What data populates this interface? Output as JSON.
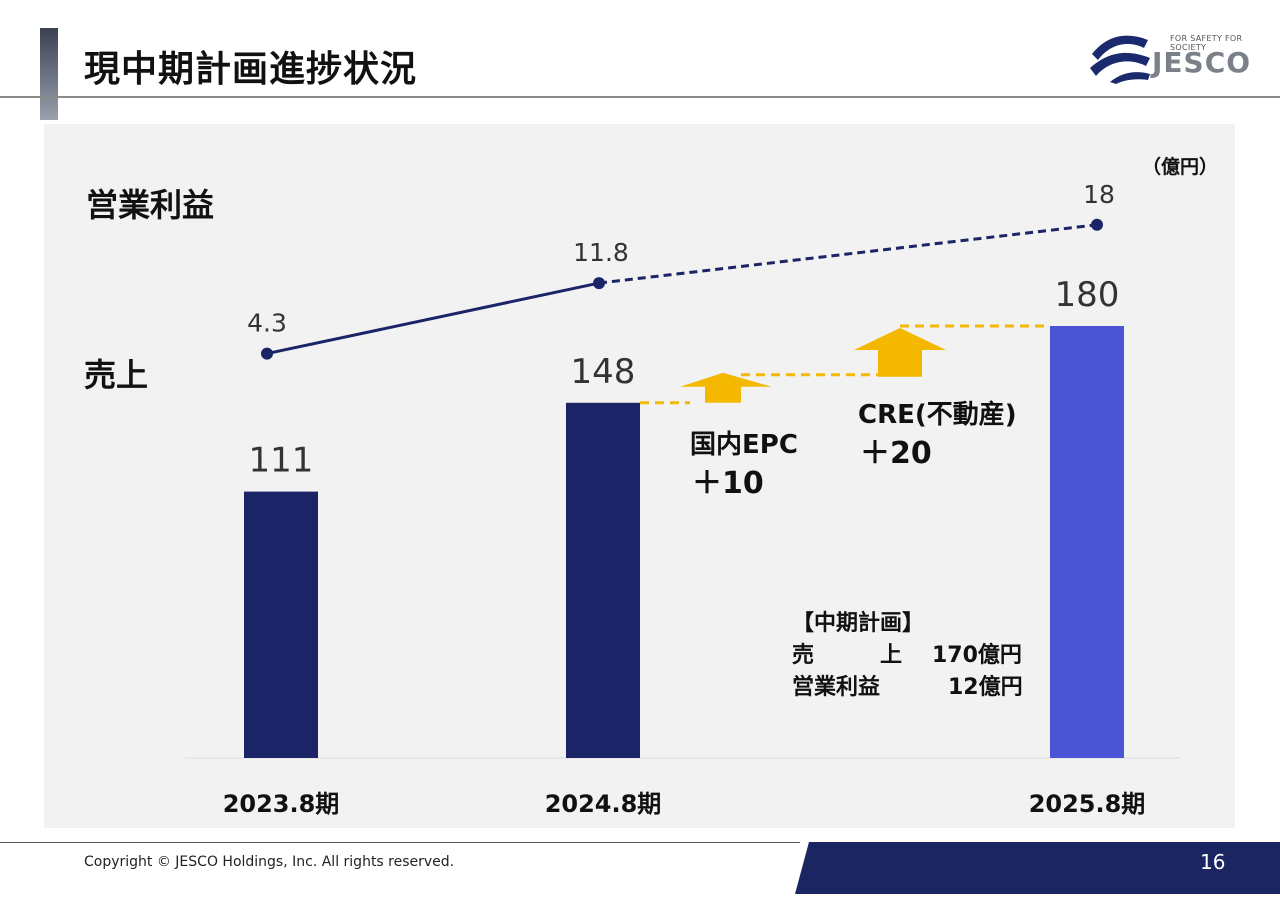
{
  "header": {
    "title": "現中期計画進捗状況"
  },
  "logo": {
    "tagline": "FOR SAFETY FOR SOCIETY",
    "word": "JESCO"
  },
  "unit": "（億円）",
  "labels": {
    "profit": "営業利益",
    "sales": "売上"
  },
  "chart_data": {
    "type": "bar",
    "categories": [
      "2023.8期",
      "2024.8期",
      "2025.8期"
    ],
    "series": [
      {
        "name": "売上",
        "values": [
          111,
          148,
          180
        ],
        "colors": [
          "#1a2466",
          "#1a2466",
          "#4a55d6"
        ]
      },
      {
        "name": "営業利益",
        "type": "line",
        "values": [
          4.3,
          11.8,
          18
        ],
        "color": "#1a2466"
      }
    ],
    "value_labels": {
      "sales": [
        "111",
        "148",
        "180"
      ],
      "profit": [
        "4.3",
        "11.8",
        "18"
      ]
    },
    "annotations": {
      "epc": {
        "label": "国内EPC",
        "delta": "＋10"
      },
      "cre": {
        "label": "CRE(不動産)",
        "delta": "＋20"
      },
      "arrow_color": "#f5b800"
    },
    "plan": {
      "title": "【中期計画】",
      "rows": [
        {
          "k": "売　　　上",
          "v": "170億円"
        },
        {
          "k": "営業利益",
          "v": "12億円"
        }
      ]
    }
  },
  "footer": {
    "copyright": "Copyright © JESCO Holdings, Inc.  All rights reserved.",
    "page": "16"
  }
}
